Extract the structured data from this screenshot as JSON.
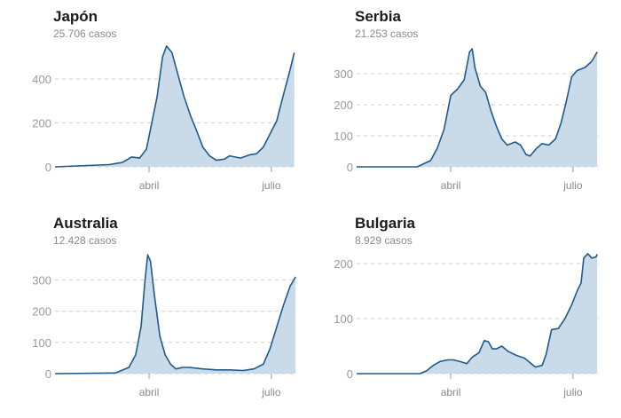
{
  "chart_data": [
    {
      "type": "area",
      "title": "Japón",
      "subtitle": "25.706 casos",
      "yticks": [
        0,
        200,
        400
      ],
      "xticks": [
        {
          "label": "abril",
          "day": 70
        },
        {
          "label": "julio",
          "day": 161
        }
      ],
      "x": [
        0,
        40,
        50,
        57,
        63,
        68,
        72,
        76,
        80,
        83,
        87,
        91,
        96,
        101,
        105,
        110,
        115,
        120,
        126,
        130,
        138,
        145,
        150,
        155,
        160,
        165,
        170,
        174,
        178
      ],
      "values": [
        0,
        10,
        20,
        45,
        40,
        80,
        200,
        320,
        500,
        550,
        520,
        430,
        320,
        230,
        170,
        90,
        50,
        30,
        35,
        50,
        40,
        55,
        60,
        90,
        150,
        210,
        330,
        420,
        520
      ]
    },
    {
      "type": "area",
      "title": "Serbia",
      "subtitle": "21.253 casos",
      "yticks": [
        0,
        100,
        200,
        300
      ],
      "xticks": [
        {
          "label": "abril",
          "day": 70
        },
        {
          "label": "julio",
          "day": 161
        }
      ],
      "x": [
        0,
        45,
        55,
        60,
        65,
        70,
        75,
        80,
        84,
        86,
        88,
        92,
        96,
        100,
        104,
        108,
        112,
        118,
        122,
        126,
        129,
        134,
        138,
        143,
        148,
        152,
        156,
        160,
        164,
        170,
        175,
        179
      ],
      "values": [
        0,
        0,
        20,
        60,
        120,
        230,
        250,
        280,
        370,
        380,
        320,
        260,
        240,
        180,
        130,
        90,
        70,
        80,
        70,
        40,
        35,
        60,
        75,
        70,
        90,
        140,
        210,
        290,
        310,
        320,
        340,
        370
      ]
    },
    {
      "type": "area",
      "title": "Australia",
      "subtitle": "12.428 casos",
      "yticks": [
        0,
        100,
        200,
        300
      ],
      "xticks": [
        {
          "label": "abril",
          "day": 70
        },
        {
          "label": "julio",
          "day": 161
        }
      ],
      "x": [
        0,
        45,
        55,
        60,
        64,
        67,
        69,
        71,
        74,
        78,
        82,
        86,
        90,
        95,
        100,
        110,
        120,
        130,
        140,
        148,
        155,
        160,
        165,
        170,
        175,
        179
      ],
      "values": [
        0,
        2,
        20,
        60,
        150,
        300,
        380,
        360,
        250,
        120,
        60,
        30,
        15,
        20,
        20,
        15,
        12,
        12,
        10,
        15,
        30,
        80,
        150,
        220,
        280,
        310
      ]
    },
    {
      "type": "area",
      "title": "Bulgaria",
      "subtitle": "8.929 casos",
      "yticks": [
        0,
        100,
        200
      ],
      "xticks": [
        {
          "label": "abril",
          "day": 70
        },
        {
          "label": "julio",
          "day": 161
        }
      ],
      "x": [
        0,
        47,
        52,
        57,
        62,
        68,
        72,
        77,
        82,
        86,
        91,
        95,
        98,
        101,
        104,
        108,
        113,
        119,
        125,
        129,
        133,
        138,
        141,
        145,
        150,
        155,
        160,
        164,
        167,
        169,
        172,
        175,
        178,
        179
      ],
      "values": [
        0,
        0,
        5,
        15,
        22,
        25,
        25,
        22,
        18,
        30,
        38,
        60,
        58,
        45,
        45,
        50,
        40,
        33,
        28,
        20,
        12,
        15,
        35,
        80,
        82,
        100,
        125,
        150,
        165,
        210,
        218,
        210,
        212,
        217
      ]
    }
  ]
}
